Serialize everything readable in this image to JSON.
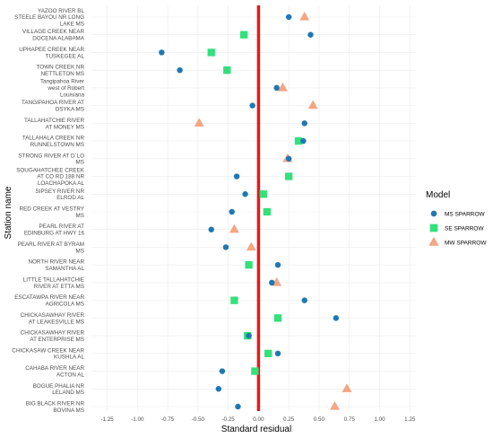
{
  "chart_data": {
    "type": "scatter",
    "xlabel": "Standard residual",
    "ylabel": "Station name",
    "xlim": [
      -1.38,
      1.3
    ],
    "xticks": [
      "-1.25",
      "-1.00",
      "-0.75",
      "-0.50",
      "-0.25",
      "0.00",
      "0.25",
      "0.50",
      "0.75",
      "1.00",
      "1.25"
    ],
    "xtick_values": [
      -1.25,
      -1.0,
      -0.75,
      -0.5,
      -0.25,
      0.0,
      0.25,
      0.5,
      0.75,
      1.0,
      1.25
    ],
    "reference_line": {
      "x": 0,
      "color": "#e41a1c"
    },
    "grid": true,
    "legend": {
      "title": "Model",
      "placement": "right",
      "entries": [
        {
          "name": "MS SPARROW",
          "color": "#1f78b4",
          "shape": "circle"
        },
        {
          "name": "SE SPARROW",
          "color": "#33e07a",
          "shape": "square"
        },
        {
          "name": "MW SPARROW",
          "color": "#f4a582",
          "shape": "triangle"
        }
      ]
    },
    "stations": [
      [
        "YAZOO RIVER BL",
        "STEELE BAYOU NR LONG",
        "LAKE MS"
      ],
      [
        "VILLAGE CREEK NEAR",
        "DOCENA ALABAMA"
      ],
      [
        "UPHAPEE CREEK NEAR",
        "TUSKEGEE AL"
      ],
      [
        "TOWN CREEK NR",
        "NETTLETON MS"
      ],
      [
        "Tangipahoa River",
        "west of Robert",
        "Louisiana"
      ],
      [
        "TANGIPAHOA RIVER AT",
        "OSYKA MS"
      ],
      [
        "TALLAHATCHIE RIVER",
        "AT MONEY MS"
      ],
      [
        "TALLAHALA CREEK NR",
        "RUNNELSTOWN MS"
      ],
      [
        "STRONG RIVER AT D`LO",
        "MS"
      ],
      [
        "SOUGAHATCHEE CREEK",
        "AT CO RD 188 NR",
        "LOACHAPOKA AL"
      ],
      [
        "SIPSEY RIVER NR",
        "ELROD AL"
      ],
      [
        "RED CREEK AT VESTRY",
        "MS"
      ],
      [
        "PEARL RIVER AT",
        "EDINBURG AT HWY 16"
      ],
      [
        "PEARL RIVER AT BYRAM",
        "MS"
      ],
      [
        "NORTH RIVER NEAR",
        "SAMANTHA AL"
      ],
      [
        "LITTLE TALLAHATCHIE",
        "RIVER AT ETTA MS"
      ],
      [
        "ESCATAWPA RIVER NEAR",
        "AGRICOLA MS"
      ],
      [
        "CHICKASAWHAY RIVER",
        "AT LEAKESVILLE MS"
      ],
      [
        "CHICKASAWHAY RIVER",
        "AT ENTERPRISE MS"
      ],
      [
        "CHICKASAW CREEK NEAR",
        "KUSHLA AL"
      ],
      [
        "CAHABA RIVER NEAR",
        "ACTON AL"
      ],
      [
        "BOGUE PHALIA NR",
        "LELAND MS"
      ],
      [
        "BIG BLACK RIVER NR",
        "BOVINA MS"
      ]
    ],
    "series": [
      {
        "name": "MS SPARROW",
        "values": [
          0.25,
          0.43,
          -0.8,
          -0.65,
          0.15,
          -0.05,
          0.38,
          0.37,
          0.25,
          -0.18,
          -0.11,
          -0.22,
          -0.39,
          -0.27,
          0.16,
          0.11,
          0.38,
          0.64,
          -0.08,
          0.16,
          -0.3,
          -0.33,
          -0.17
        ]
      },
      {
        "name": "SE SPARROW",
        "values": [
          null,
          -0.12,
          -0.39,
          -0.26,
          null,
          null,
          null,
          0.33,
          null,
          0.25,
          0.04,
          0.07,
          null,
          null,
          -0.08,
          null,
          -0.2,
          0.16,
          -0.09,
          0.08,
          -0.03,
          null,
          null
        ]
      },
      {
        "name": "MW SPARROW",
        "values": [
          0.38,
          null,
          null,
          null,
          0.2,
          0.45,
          -0.49,
          null,
          0.24,
          null,
          null,
          null,
          -0.2,
          -0.06,
          null,
          0.15,
          null,
          null,
          null,
          null,
          null,
          0.73,
          0.63
        ]
      }
    ]
  }
}
